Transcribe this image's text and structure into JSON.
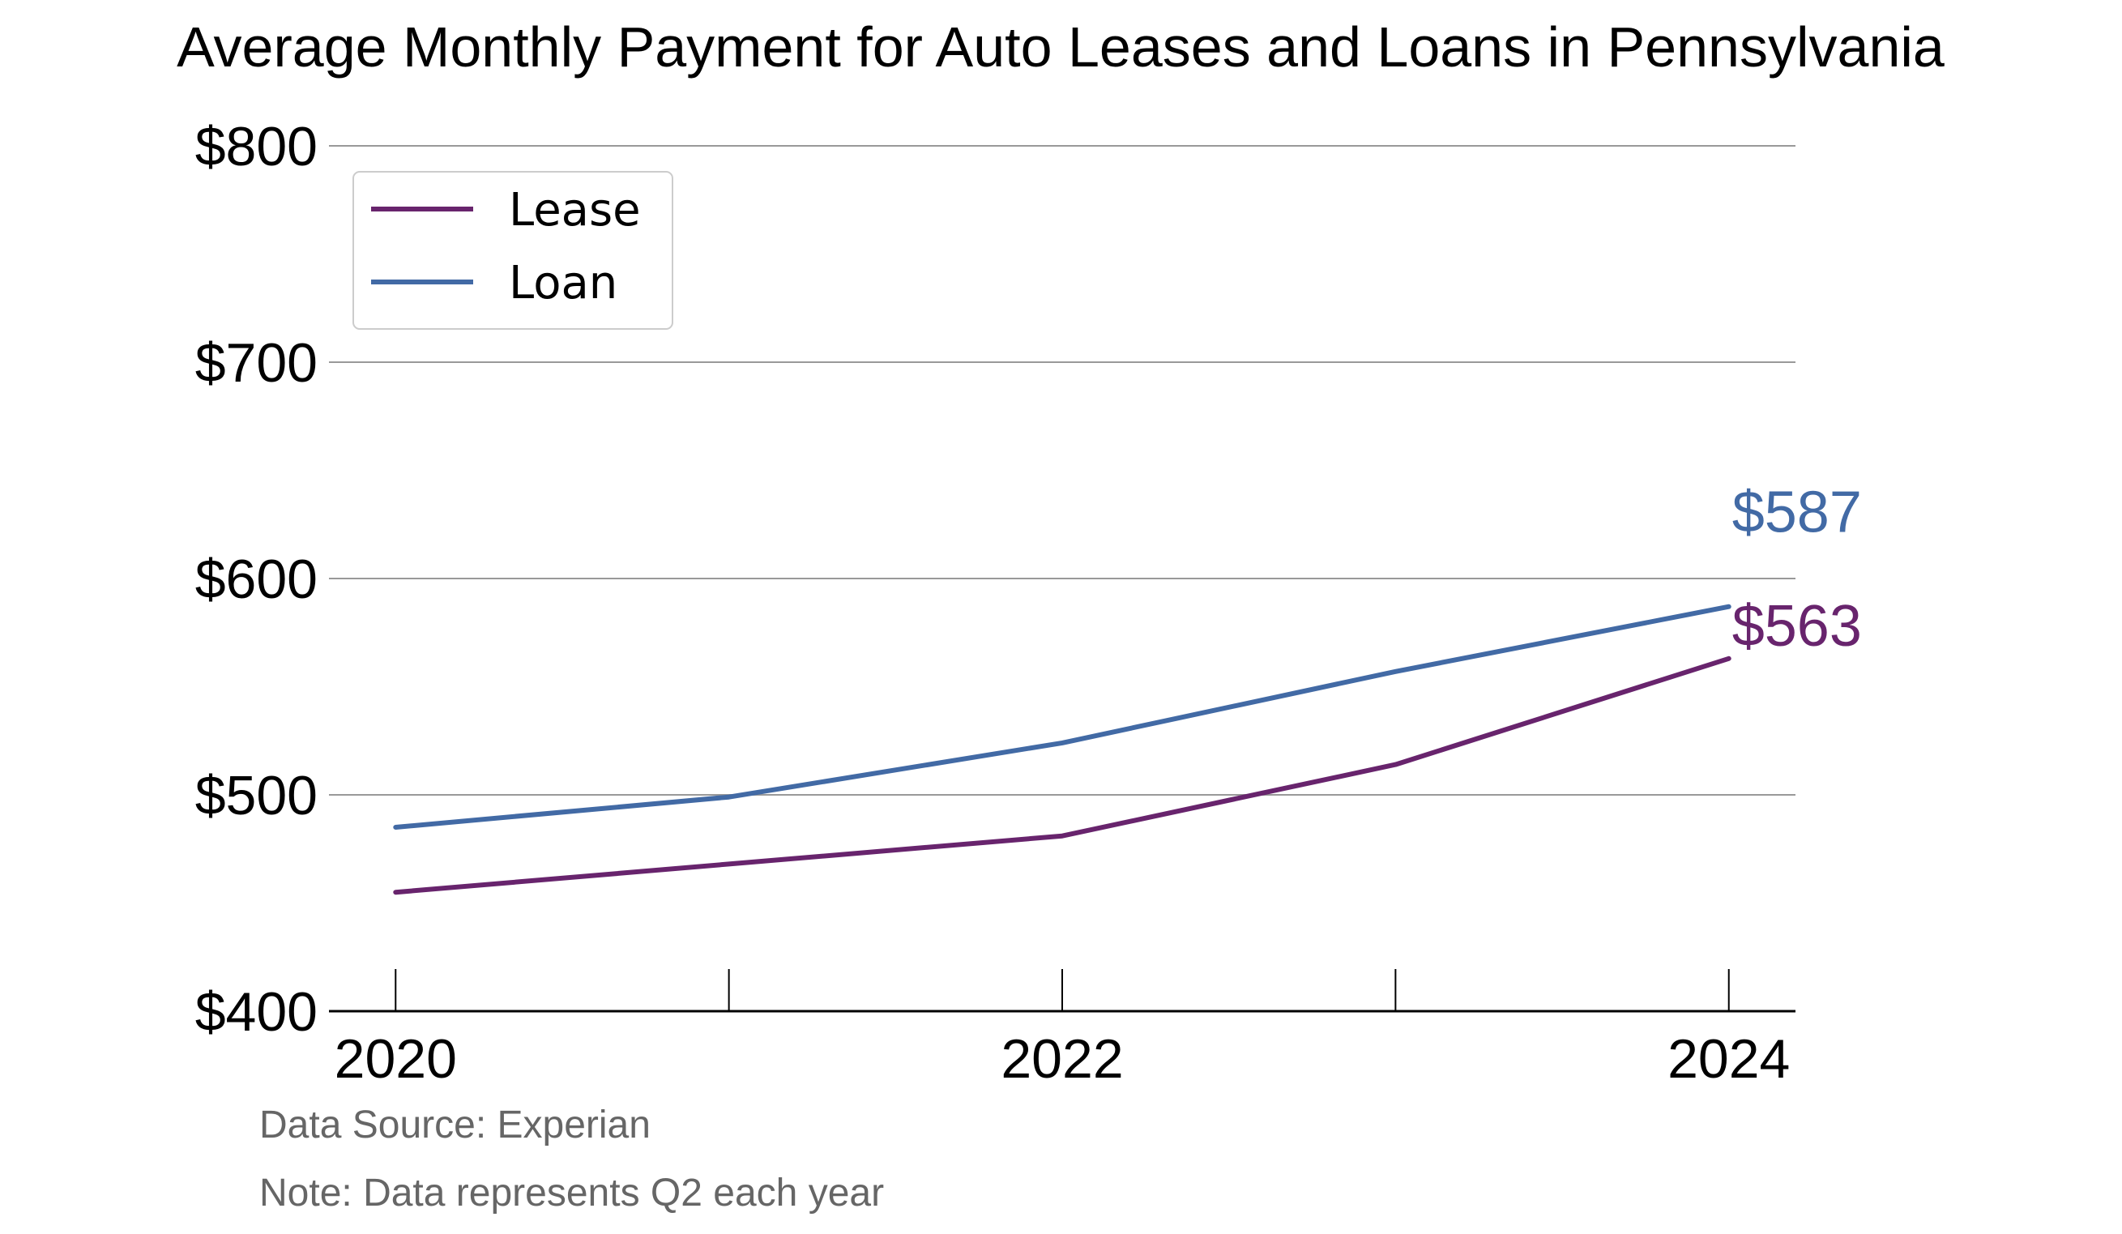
{
  "chart_data": {
    "type": "line",
    "title": "Average Monthly Payment for Auto Leases and Loans in Pennsylvania",
    "x": [
      2020,
      2021,
      2022,
      2023,
      2024
    ],
    "x_tick_labels": [
      "2020",
      "2022",
      "2024"
    ],
    "x_tick_values": [
      2020,
      2022,
      2024
    ],
    "xlim": [
      2019.8,
      2024.2
    ],
    "ylim": [
      400,
      800
    ],
    "y_ticks": [
      400,
      500,
      600,
      700,
      800
    ],
    "y_tick_labels": [
      "$400",
      "$500",
      "$600",
      "$700",
      "$800"
    ],
    "grid": "horizontal",
    "legend_position": "top-left",
    "series": [
      {
        "name": "Lease",
        "color": "#68246d",
        "values": [
          455,
          468,
          481,
          514,
          563
        ],
        "end_label": "$563"
      },
      {
        "name": "Loan",
        "color": "#426aa5",
        "values": [
          485,
          499,
          524,
          557,
          587
        ],
        "end_label": "$587"
      }
    ]
  },
  "footnotes": {
    "source": "Data Source: Experian",
    "note": "Note: Data represents Q2 each year"
  }
}
